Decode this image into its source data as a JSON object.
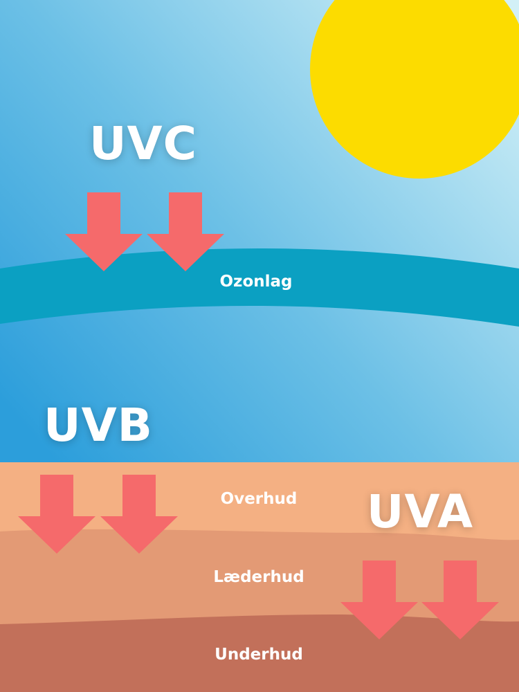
{
  "colors": {
    "sky_top": "#3aa3dc",
    "sky_light": "#c6ecf6",
    "sun": "#fcdc00",
    "ozone": "#0ba0c2",
    "arrow": "#f56a6b",
    "epidermis": "#f4b083",
    "dermis": "#e39a75",
    "subcutis": "#c2705a"
  },
  "radiation": {
    "uvc": "UVC",
    "uvb": "UVB",
    "uva": "UVA"
  },
  "layers": {
    "ozone": "Ozonlag",
    "epidermis": "Overhud",
    "dermis": "Læderhud",
    "subcutis": "Underhud"
  }
}
